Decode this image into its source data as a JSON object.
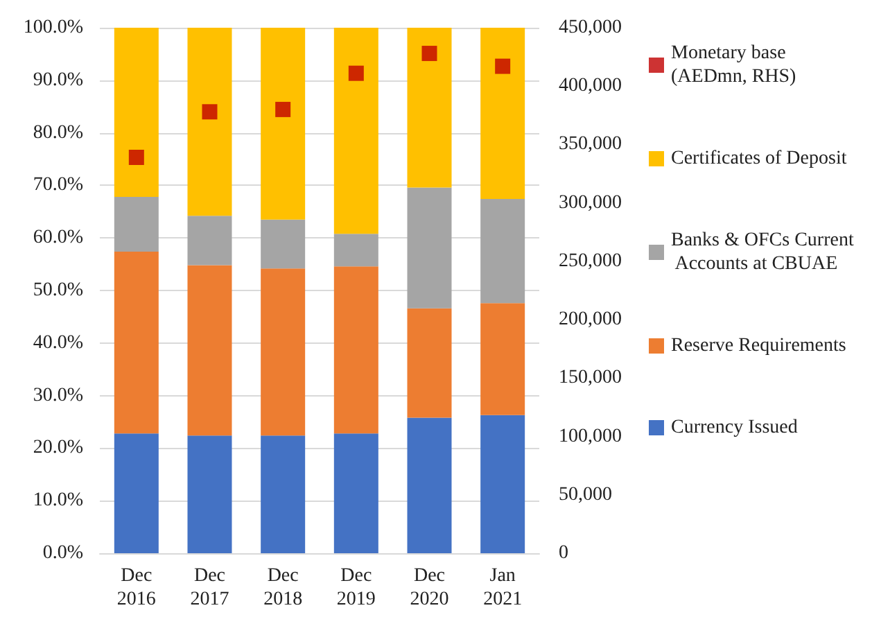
{
  "chart_data": {
    "type": "bar",
    "stacked": true,
    "categories": [
      "Dec\n2016",
      "Dec\n2017",
      "Dec\n2018",
      "Dec\n2019",
      "Dec\n2020",
      "Jan\n2021"
    ],
    "series": [
      {
        "name": "Currency Issued",
        "color": "#4472c4",
        "values": [
          22.8,
          22.4,
          22.4,
          22.8,
          25.8,
          26.3
        ]
      },
      {
        "name": "Reserve Requirements",
        "color": "#ed7d31",
        "values": [
          34.6,
          32.4,
          31.8,
          31.8,
          20.8,
          21.3
        ]
      },
      {
        "name": "Banks & OFCs Current Accounts at CBUAE",
        "color": "#a5a5a5",
        "values": [
          10.4,
          9.4,
          9.3,
          6.2,
          23.0,
          19.8
        ]
      },
      {
        "name": "Certificates of Deposit",
        "color": "#ffc000",
        "values": [
          32.2,
          35.8,
          36.5,
          39.2,
          30.4,
          32.6
        ]
      },
      {
        "name": "Monetary base (AEDmn, RHS)",
        "type": "scatter",
        "axis": "y2",
        "marker": "square",
        "color": "#c00000",
        "values": [
          339000,
          378000,
          380000,
          411000,
          428000,
          417000
        ]
      }
    ],
    "ylim": [
      0,
      100
    ],
    "yticks": [
      {
        "value": 0,
        "label": "0.0%"
      },
      {
        "value": 10,
        "label": "10.0%"
      },
      {
        "value": 20,
        "label": "20.0%"
      },
      {
        "value": 30,
        "label": "30.0%"
      },
      {
        "value": 40,
        "label": "40.0%"
      },
      {
        "value": 50,
        "label": "50.0%"
      },
      {
        "value": 60,
        "label": "60.0%"
      },
      {
        "value": 70,
        "label": "70.0%"
      },
      {
        "value": 80,
        "label": "80.0%"
      },
      {
        "value": 90,
        "label": "90.0%"
      },
      {
        "value": 100,
        "label": "100.0%"
      }
    ],
    "y2lim": [
      0,
      450000
    ],
    "y2ticks": [
      0,
      {
        "value": 50000,
        "label": "50,000"
      },
      {
        "value": 100000,
        "label": "100,000"
      },
      {
        "value": 150000,
        "label": "150,000"
      },
      {
        "value": 200000,
        "label": "200,000"
      },
      {
        "value": 250000,
        "label": "250,000"
      },
      {
        "value": 300000,
        "label": "300,000"
      },
      {
        "value": 350000,
        "label": "350,000"
      },
      {
        "value": 400000,
        "label": "400,000"
      },
      {
        "value": 450000,
        "label": "450,000"
      }
    ],
    "grid": "y",
    "legend": "right"
  }
}
